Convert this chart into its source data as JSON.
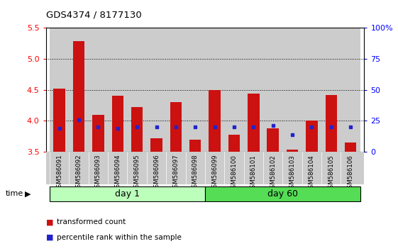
{
  "title": "GDS4374 / 8177130",
  "samples": [
    "GSM586091",
    "GSM586092",
    "GSM586093",
    "GSM586094",
    "GSM586095",
    "GSM586096",
    "GSM586097",
    "GSM586098",
    "GSM586099",
    "GSM586100",
    "GSM586101",
    "GSM586102",
    "GSM586103",
    "GSM586104",
    "GSM586105",
    "GSM586106"
  ],
  "transformed_count": [
    4.52,
    5.28,
    4.1,
    4.4,
    4.22,
    3.72,
    4.3,
    3.7,
    4.5,
    3.78,
    4.44,
    3.88,
    3.54,
    4.0,
    4.42,
    3.65
  ],
  "percentile_rank": [
    19,
    26,
    20,
    19,
    20,
    20,
    20,
    20,
    20,
    20,
    20,
    21,
    14,
    20,
    20,
    20
  ],
  "day1_count": 8,
  "day60_count": 8,
  "ylim": [
    3.5,
    5.5
  ],
  "yticks": [
    3.5,
    4.0,
    4.5,
    5.0,
    5.5
  ],
  "right_yticks": [
    0,
    25,
    50,
    75,
    100
  ],
  "bar_color": "#cc1111",
  "dot_color": "#2222cc",
  "day1_color": "#bbffbb",
  "day60_color": "#55dd55",
  "col_bg_color": "#cccccc",
  "bar_width": 0.6,
  "base_value": 3.5
}
